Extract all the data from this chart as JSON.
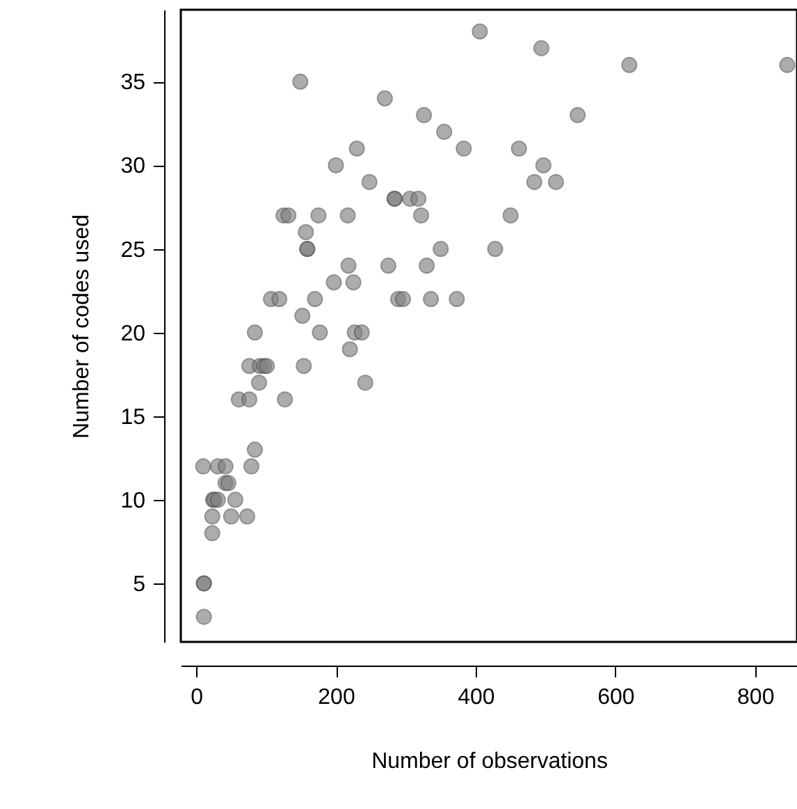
{
  "chart_data": {
    "type": "scatter",
    "xlabel": "Number of observations",
    "ylabel": "Number of codes used",
    "xlim": [
      -22,
      860
    ],
    "ylim": [
      1.5,
      39.3
    ],
    "xticks": [
      0,
      200,
      400,
      600,
      800
    ],
    "yticks": [
      5,
      10,
      15,
      20,
      25,
      30,
      35
    ],
    "grid": false,
    "marker": "circle",
    "series": [
      {
        "color": "#808080",
        "x": [
          406,
          494,
          620,
          846,
          149,
          270,
          326,
          546,
          355,
          230,
          383,
          462,
          200,
          497,
          248,
          484,
          515,
          284,
          284,
          306,
          318,
          125,
          132,
          175,
          217,
          322,
          450,
          157,
          159,
          159,
          350,
          428,
          218,
          275,
          330,
          197,
          225,
          107,
          119,
          170,
          289,
          296,
          336,
          373,
          152,
          84,
          177,
          227,
          237,
          220,
          76,
          91,
          97,
          101,
          154,
          90,
          242,
          61,
          76,
          127,
          84,
          10,
          31,
          42,
          79,
          42,
          46,
          24,
          26,
          31,
          56,
          23,
          50,
          73,
          23,
          11,
          11,
          11
        ],
        "values": [
          38,
          37,
          36,
          36,
          35,
          34,
          33,
          33,
          32,
          31,
          31,
          31,
          30,
          30,
          29,
          29,
          29,
          28,
          28,
          28,
          28,
          27,
          27,
          27,
          27,
          27,
          27,
          26,
          25,
          25,
          25,
          25,
          24,
          24,
          24,
          23,
          23,
          22,
          22,
          22,
          22,
          22,
          22,
          22,
          21,
          20,
          20,
          20,
          20,
          19,
          18,
          18,
          18,
          18,
          18,
          17,
          17,
          16,
          16,
          16,
          13,
          12,
          12,
          12,
          12,
          11,
          11,
          10,
          10,
          10,
          10,
          9,
          9,
          9,
          8,
          5,
          5,
          3
        ]
      }
    ]
  }
}
